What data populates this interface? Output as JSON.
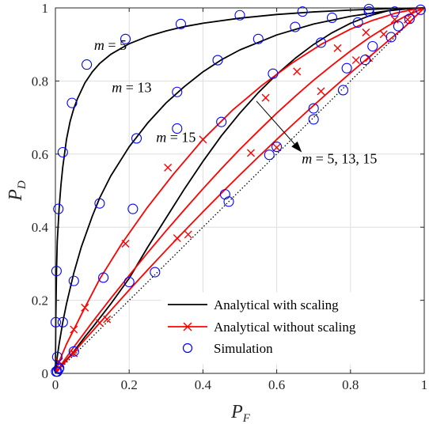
{
  "chart_data": {
    "type": "line",
    "xlabel": "P",
    "xlabel_sub": "F",
    "ylabel": "P",
    "ylabel_sub": "D",
    "xlim": [
      0,
      1
    ],
    "ylim": [
      0,
      1
    ],
    "xticks": [
      0,
      0.2,
      0.4,
      0.6,
      0.8,
      1
    ],
    "yticks": [
      0,
      0.2,
      0.4,
      0.6,
      0.8,
      1
    ],
    "xtick_labels": [
      "0",
      "0.2",
      "0.4",
      "0.6",
      "0.8",
      "1"
    ],
    "ytick_labels": [
      "0",
      "0.2",
      "0.4",
      "0.6",
      "0.8",
      "1"
    ],
    "grid": true,
    "legend_position": "bottom-right",
    "legend": [
      {
        "label": "Analytical with scaling",
        "color": "#000000",
        "style": "line"
      },
      {
        "label": "Analytical without scaling",
        "color": "#ff0000",
        "style": "line-x"
      },
      {
        "label": "Simulation",
        "color": "#0000ff",
        "style": "circle"
      }
    ],
    "annotations": {
      "m5": {
        "pre": "m",
        "post": " = 5",
        "x": 0.105,
        "y": 0.885
      },
      "m13": {
        "pre": "m",
        "post": " = 13",
        "x": 0.153,
        "y": 0.77
      },
      "m15": {
        "pre": "m",
        "post": " = 15",
        "x": 0.273,
        "y": 0.633
      },
      "mall": {
        "pre": "m",
        "post": " = 5, 13, 15",
        "x": 0.668,
        "y": 0.575
      },
      "arrow": {
        "x1": 0.545,
        "y1": 0.745,
        "x2": 0.668,
        "y2": 0.605
      }
    },
    "diagonal": {
      "x": [
        0,
        1
      ],
      "y": [
        0,
        1
      ],
      "color": "#000000",
      "style": "dotted"
    },
    "series": [
      {
        "kind": "with_scaling",
        "m": 5,
        "color": "#000000",
        "x": [
          0,
          0.001,
          0.003,
          0.005,
          0.01,
          0.015,
          0.02,
          0.03,
          0.04,
          0.05,
          0.06,
          0.08,
          0.1,
          0.12,
          0.15,
          0.2,
          0.25,
          0.3,
          0.35,
          0.4,
          0.5,
          0.6,
          0.7,
          0.8,
          0.9,
          0.95,
          1.0
        ],
        "y": [
          0,
          0.14,
          0.28,
          0.36,
          0.45,
          0.515,
          0.565,
          0.64,
          0.69,
          0.725,
          0.752,
          0.795,
          0.825,
          0.848,
          0.873,
          0.902,
          0.922,
          0.937,
          0.949,
          0.958,
          0.972,
          0.982,
          0.989,
          0.994,
          0.998,
          0.999,
          1.0
        ]
      },
      {
        "kind": "with_scaling",
        "m": 13,
        "color": "#000000",
        "x": [
          0,
          0.005,
          0.01,
          0.02,
          0.03,
          0.05,
          0.07,
          0.1,
          0.12,
          0.15,
          0.2,
          0.25,
          0.3,
          0.35,
          0.4,
          0.45,
          0.5,
          0.6,
          0.7,
          0.8,
          0.9,
          0.95,
          1.0
        ],
        "y": [
          0,
          0.045,
          0.08,
          0.14,
          0.19,
          0.275,
          0.345,
          0.43,
          0.48,
          0.54,
          0.62,
          0.685,
          0.74,
          0.785,
          0.825,
          0.858,
          0.885,
          0.926,
          0.956,
          0.977,
          0.992,
          0.997,
          1.0
        ]
      },
      {
        "kind": "with_scaling",
        "m": 15,
        "color": "#000000",
        "x": [
          0,
          0.02,
          0.05,
          0.08,
          0.1,
          0.15,
          0.2,
          0.25,
          0.3,
          0.35,
          0.4,
          0.45,
          0.5,
          0.55,
          0.6,
          0.65,
          0.7,
          0.75,
          0.8,
          0.85,
          0.9,
          0.95,
          1.0
        ],
        "y": [
          0,
          0.025,
          0.06,
          0.1,
          0.125,
          0.19,
          0.26,
          0.345,
          0.425,
          0.505,
          0.58,
          0.65,
          0.712,
          0.768,
          0.818,
          0.862,
          0.9,
          0.932,
          0.958,
          0.978,
          0.992,
          0.998,
          1.0
        ]
      },
      {
        "kind": "without_scaling",
        "m": 5,
        "color": "#ff0000",
        "x": [
          0,
          0.01,
          0.03,
          0.05,
          0.08,
          0.12,
          0.18,
          0.25,
          0.32,
          0.4,
          0.48,
          0.56,
          0.64,
          0.72,
          0.8,
          0.86,
          0.92,
          0.97,
          1.0
        ],
        "y": [
          0,
          0.032,
          0.08,
          0.12,
          0.18,
          0.258,
          0.355,
          0.455,
          0.545,
          0.64,
          0.72,
          0.788,
          0.848,
          0.9,
          0.942,
          0.966,
          0.985,
          0.996,
          1.0
        ]
      },
      {
        "kind": "without_scaling",
        "m": 13,
        "color": "#ff0000",
        "x": [
          0,
          0.02,
          0.05,
          0.1,
          0.15,
          0.2,
          0.25,
          0.3,
          0.35,
          0.4,
          0.45,
          0.5,
          0.55,
          0.6,
          0.65,
          0.7,
          0.75,
          0.8,
          0.85,
          0.9,
          0.95,
          1.0
        ],
        "y": [
          0,
          0.03,
          0.072,
          0.14,
          0.205,
          0.268,
          0.33,
          0.39,
          0.448,
          0.505,
          0.56,
          0.613,
          0.663,
          0.712,
          0.758,
          0.802,
          0.843,
          0.882,
          0.918,
          0.95,
          0.978,
          1.0
        ]
      },
      {
        "kind": "without_scaling",
        "m": 15,
        "color": "#ff0000",
        "x": [
          0,
          0.05,
          0.1,
          0.15,
          0.2,
          0.25,
          0.3,
          0.35,
          0.4,
          0.45,
          0.5,
          0.55,
          0.6,
          0.65,
          0.7,
          0.75,
          0.8,
          0.85,
          0.9,
          0.95,
          1.0
        ],
        "y": [
          0,
          0.058,
          0.115,
          0.172,
          0.228,
          0.283,
          0.337,
          0.39,
          0.442,
          0.493,
          0.543,
          0.592,
          0.64,
          0.687,
          0.733,
          0.778,
          0.822,
          0.865,
          0.908,
          0.951,
          1.0
        ]
      }
    ],
    "markers": {
      "red_x": [
        {
          "x": 0.01,
          "y": 0.032
        },
        {
          "x": 0.05,
          "y": 0.12
        },
        {
          "x": 0.08,
          "y": 0.18
        },
        {
          "x": 0.19,
          "y": 0.355
        },
        {
          "x": 0.305,
          "y": 0.563
        },
        {
          "x": 0.4,
          "y": 0.64
        },
        {
          "x": 0.57,
          "y": 0.754
        },
        {
          "x": 0.655,
          "y": 0.826
        },
        {
          "x": 0.765,
          "y": 0.89
        },
        {
          "x": 0.842,
          "y": 0.933
        },
        {
          "x": 0.92,
          "y": 0.968
        },
        {
          "x": 0.965,
          "y": 0.985
        },
        {
          "x": 0.05,
          "y": 0.055
        },
        {
          "x": 0.12,
          "y": 0.138
        },
        {
          "x": 0.33,
          "y": 0.37
        },
        {
          "x": 0.53,
          "y": 0.603
        },
        {
          "x": 0.72,
          "y": 0.772
        },
        {
          "x": 0.815,
          "y": 0.857
        },
        {
          "x": 0.89,
          "y": 0.928
        },
        {
          "x": 0.955,
          "y": 0.968
        },
        {
          "x": 0.14,
          "y": 0.148
        },
        {
          "x": 0.36,
          "y": 0.38
        },
        {
          "x": 0.6,
          "y": 0.618
        },
        {
          "x": 0.85,
          "y": 0.863
        }
      ],
      "blue_o": [
        {
          "x": 0.001,
          "y": 0.14
        },
        {
          "x": 0.003,
          "y": 0.28
        },
        {
          "x": 0.008,
          "y": 0.45
        },
        {
          "x": 0.02,
          "y": 0.605
        },
        {
          "x": 0.045,
          "y": 0.74
        },
        {
          "x": 0.085,
          "y": 0.845
        },
        {
          "x": 0.19,
          "y": 0.915
        },
        {
          "x": 0.34,
          "y": 0.956
        },
        {
          "x": 0.5,
          "y": 0.98
        },
        {
          "x": 0.67,
          "y": 0.99
        },
        {
          "x": 0.85,
          "y": 0.997
        },
        {
          "x": 0.005,
          "y": 0.045
        },
        {
          "x": 0.02,
          "y": 0.14
        },
        {
          "x": 0.05,
          "y": 0.253
        },
        {
          "x": 0.12,
          "y": 0.465
        },
        {
          "x": 0.22,
          "y": 0.643
        },
        {
          "x": 0.33,
          "y": 0.77
        },
        {
          "x": 0.44,
          "y": 0.857
        },
        {
          "x": 0.55,
          "y": 0.915
        },
        {
          "x": 0.65,
          "y": 0.948
        },
        {
          "x": 0.75,
          "y": 0.973
        },
        {
          "x": 0.85,
          "y": 0.99
        },
        {
          "x": 0.01,
          "y": 0.015
        },
        {
          "x": 0.05,
          "y": 0.06
        },
        {
          "x": 0.13,
          "y": 0.262
        },
        {
          "x": 0.21,
          "y": 0.45
        },
        {
          "x": 0.33,
          "y": 0.67
        },
        {
          "x": 0.45,
          "y": 0.688
        },
        {
          "x": 0.59,
          "y": 0.82
        },
        {
          "x": 0.72,
          "y": 0.905
        },
        {
          "x": 0.82,
          "y": 0.96
        },
        {
          "x": 0.92,
          "y": 0.99
        },
        {
          "x": 0.2,
          "y": 0.25
        },
        {
          "x": 0.27,
          "y": 0.277
        },
        {
          "x": 0.46,
          "y": 0.49
        },
        {
          "x": 0.6,
          "y": 0.62
        },
        {
          "x": 0.7,
          "y": 0.725
        },
        {
          "x": 0.79,
          "y": 0.835
        },
        {
          "x": 0.86,
          "y": 0.895
        },
        {
          "x": 0.93,
          "y": 0.95
        },
        {
          "x": 0.47,
          "y": 0.47
        },
        {
          "x": 0.58,
          "y": 0.598
        },
        {
          "x": 0.7,
          "y": 0.695
        },
        {
          "x": 0.78,
          "y": 0.775
        },
        {
          "x": 0.84,
          "y": 0.858
        },
        {
          "x": 0.91,
          "y": 0.92
        },
        {
          "x": 0.96,
          "y": 0.97
        },
        {
          "x": 0.99,
          "y": 0.995
        },
        {
          "x": 0.002,
          "y": 0.005
        },
        {
          "x": 0.005,
          "y": 0.005
        },
        {
          "x": 0.009,
          "y": 0.012
        }
      ]
    }
  }
}
